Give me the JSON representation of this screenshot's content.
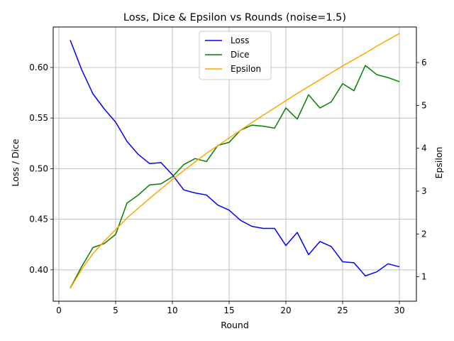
{
  "chart_data": {
    "type": "line",
    "title": "Loss, Dice & Epsilon vs Rounds (noise=1.5)",
    "xlabel": "Round",
    "ylabel_left": "Loss / Dice",
    "ylabel_right": "Epsilon",
    "xlim": [
      -0.5,
      31.5
    ],
    "ylim_left": [
      0.369,
      0.64
    ],
    "ylim_right": [
      0.43,
      6.83
    ],
    "x_ticks": [
      0,
      5,
      10,
      15,
      20,
      25,
      30
    ],
    "y_ticks_left": [
      0.4,
      0.45,
      0.5,
      0.55,
      0.6
    ],
    "y_tick_labels_left": [
      "0.40",
      "0.45",
      "0.50",
      "0.55",
      "0.60"
    ],
    "y_ticks_right": [
      1,
      2,
      3,
      4,
      5,
      6
    ],
    "grid": true,
    "legend_position": "top-center",
    "x": [
      1,
      2,
      3,
      4,
      5,
      6,
      7,
      8,
      9,
      10,
      11,
      12,
      13,
      14,
      15,
      16,
      17,
      18,
      19,
      20,
      21,
      22,
      23,
      24,
      25,
      26,
      27,
      28,
      29,
      30
    ],
    "series": [
      {
        "name": "Loss",
        "axis": "left",
        "color": "#0000ff",
        "values": [
          0.627,
          0.598,
          0.574,
          0.559,
          0.546,
          0.527,
          0.514,
          0.505,
          0.506,
          0.494,
          0.479,
          0.476,
          0.474,
          0.464,
          0.459,
          0.449,
          0.443,
          0.441,
          0.441,
          0.424,
          0.437,
          0.415,
          0.428,
          0.423,
          0.408,
          0.407,
          0.394,
          0.398,
          0.406,
          0.403
        ]
      },
      {
        "name": "Dice",
        "axis": "left",
        "color": "#008000",
        "values": [
          0.382,
          0.403,
          0.422,
          0.426,
          0.435,
          0.466,
          0.474,
          0.484,
          0.485,
          0.492,
          0.504,
          0.51,
          0.507,
          0.523,
          0.526,
          0.538,
          0.543,
          0.542,
          0.54,
          0.56,
          0.549,
          0.573,
          0.56,
          0.566,
          0.584,
          0.577,
          0.602,
          0.593,
          0.59,
          0.586
        ]
      },
      {
        "name": "Epsilon",
        "axis": "right",
        "color": "#ffa500",
        "values": [
          0.73,
          1.17,
          1.54,
          1.83,
          2.1,
          2.37,
          2.6,
          2.83,
          3.05,
          3.27,
          3.48,
          3.68,
          3.88,
          4.06,
          4.24,
          4.42,
          4.6,
          4.77,
          4.94,
          5.11,
          5.28,
          5.44,
          5.6,
          5.76,
          5.92,
          6.07,
          6.22,
          6.38,
          6.53,
          6.68
        ]
      }
    ]
  }
}
